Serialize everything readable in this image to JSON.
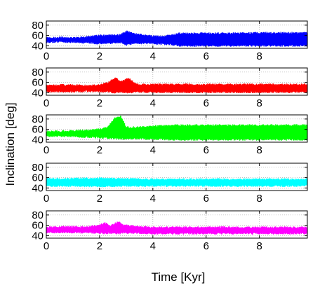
{
  "chart_data": {
    "type": "area",
    "xlabel": "Time [Kyr]",
    "ylabel": "Inclination [deg]",
    "xlim": [
      0,
      9.8
    ],
    "ylim": [
      35,
      88
    ],
    "x_ticks": [
      0,
      2,
      4,
      6,
      8
    ],
    "y_ticks": [
      40,
      60,
      80
    ],
    "grid": "dotted",
    "panels": [
      {
        "color": "#0000ff",
        "bands": [
          {
            "x": 0.0,
            "low": 45,
            "high": 57
          },
          {
            "x": 0.5,
            "low": 46,
            "high": 58
          },
          {
            "x": 1.0,
            "low": 45,
            "high": 57
          },
          {
            "x": 1.5,
            "low": 44,
            "high": 59
          },
          {
            "x": 2.0,
            "low": 42,
            "high": 62
          },
          {
            "x": 2.4,
            "low": 43,
            "high": 62
          },
          {
            "x": 2.8,
            "low": 44,
            "high": 63
          },
          {
            "x": 3.0,
            "low": 40,
            "high": 70
          },
          {
            "x": 3.3,
            "low": 42,
            "high": 65
          },
          {
            "x": 3.8,
            "low": 43,
            "high": 62
          },
          {
            "x": 4.2,
            "low": 42,
            "high": 60
          },
          {
            "x": 4.7,
            "low": 41,
            "high": 62
          },
          {
            "x": 5.0,
            "low": 38,
            "high": 66
          },
          {
            "x": 6.0,
            "low": 38,
            "high": 66
          },
          {
            "x": 7.0,
            "low": 38,
            "high": 66
          },
          {
            "x": 8.0,
            "low": 38,
            "high": 67
          },
          {
            "x": 9.0,
            "low": 38,
            "high": 67
          },
          {
            "x": 9.8,
            "low": 38,
            "high": 67
          }
        ]
      },
      {
        "color": "#ff0000",
        "bands": [
          {
            "x": 0.0,
            "low": 40,
            "high": 56
          },
          {
            "x": 0.5,
            "low": 40,
            "high": 57
          },
          {
            "x": 1.0,
            "low": 40,
            "high": 57
          },
          {
            "x": 1.5,
            "low": 41,
            "high": 56
          },
          {
            "x": 2.0,
            "low": 40,
            "high": 57
          },
          {
            "x": 2.3,
            "low": 40,
            "high": 61
          },
          {
            "x": 2.6,
            "low": 38,
            "high": 71
          },
          {
            "x": 2.8,
            "low": 40,
            "high": 63
          },
          {
            "x": 3.1,
            "low": 38,
            "high": 70
          },
          {
            "x": 3.4,
            "low": 40,
            "high": 58
          },
          {
            "x": 4.0,
            "low": 39,
            "high": 58
          },
          {
            "x": 5.0,
            "low": 39,
            "high": 58
          },
          {
            "x": 6.0,
            "low": 39,
            "high": 58
          },
          {
            "x": 7.0,
            "low": 39,
            "high": 58
          },
          {
            "x": 8.0,
            "low": 39,
            "high": 58
          },
          {
            "x": 9.0,
            "low": 39,
            "high": 58
          },
          {
            "x": 9.8,
            "low": 39,
            "high": 58
          }
        ]
      },
      {
        "color": "#00ff00",
        "bands": [
          {
            "x": 0.0,
            "low": 45,
            "high": 58
          },
          {
            "x": 0.5,
            "low": 45,
            "high": 58
          },
          {
            "x": 1.0,
            "low": 44,
            "high": 59
          },
          {
            "x": 1.5,
            "low": 43,
            "high": 60
          },
          {
            "x": 2.0,
            "low": 42,
            "high": 62
          },
          {
            "x": 2.3,
            "low": 41,
            "high": 66
          },
          {
            "x": 2.6,
            "low": 40,
            "high": 85
          },
          {
            "x": 2.8,
            "low": 39,
            "high": 87
          },
          {
            "x": 3.0,
            "low": 40,
            "high": 66
          },
          {
            "x": 3.5,
            "low": 40,
            "high": 66
          },
          {
            "x": 4.0,
            "low": 39,
            "high": 68
          },
          {
            "x": 5.0,
            "low": 38,
            "high": 70
          },
          {
            "x": 6.0,
            "low": 38,
            "high": 70
          },
          {
            "x": 7.0,
            "low": 38,
            "high": 70
          },
          {
            "x": 8.0,
            "low": 38,
            "high": 70
          },
          {
            "x": 9.0,
            "low": 38,
            "high": 70
          },
          {
            "x": 9.8,
            "low": 38,
            "high": 70
          }
        ]
      },
      {
        "color": "#00ffff",
        "bands": [
          {
            "x": 0.0,
            "low": 42,
            "high": 60
          },
          {
            "x": 1.0,
            "low": 42,
            "high": 60
          },
          {
            "x": 2.0,
            "low": 41,
            "high": 61
          },
          {
            "x": 3.0,
            "low": 42,
            "high": 60
          },
          {
            "x": 4.0,
            "low": 42,
            "high": 59
          },
          {
            "x": 5.0,
            "low": 42,
            "high": 59
          },
          {
            "x": 6.0,
            "low": 42,
            "high": 59
          },
          {
            "x": 7.0,
            "low": 42,
            "high": 59
          },
          {
            "x": 8.0,
            "low": 42,
            "high": 59
          },
          {
            "x": 9.0,
            "low": 42,
            "high": 59
          },
          {
            "x": 9.8,
            "low": 42,
            "high": 59
          }
        ]
      },
      {
        "color": "#ff00ff",
        "bands": [
          {
            "x": 0.0,
            "low": 44,
            "high": 58
          },
          {
            "x": 0.5,
            "low": 44,
            "high": 59
          },
          {
            "x": 1.0,
            "low": 44,
            "high": 59
          },
          {
            "x": 1.5,
            "low": 44,
            "high": 59
          },
          {
            "x": 2.0,
            "low": 43,
            "high": 62
          },
          {
            "x": 2.2,
            "low": 42,
            "high": 67
          },
          {
            "x": 2.4,
            "low": 43,
            "high": 60
          },
          {
            "x": 2.7,
            "low": 42,
            "high": 69
          },
          {
            "x": 2.9,
            "low": 43,
            "high": 62
          },
          {
            "x": 3.5,
            "low": 43,
            "high": 59
          },
          {
            "x": 4.0,
            "low": 42,
            "high": 58
          },
          {
            "x": 5.0,
            "low": 42,
            "high": 58
          },
          {
            "x": 6.0,
            "low": 42,
            "high": 58
          },
          {
            "x": 7.0,
            "low": 42,
            "high": 58
          },
          {
            "x": 8.0,
            "low": 42,
            "high": 58
          },
          {
            "x": 9.0,
            "low": 42,
            "high": 58
          },
          {
            "x": 9.8,
            "low": 42,
            "high": 58
          }
        ]
      }
    ]
  }
}
